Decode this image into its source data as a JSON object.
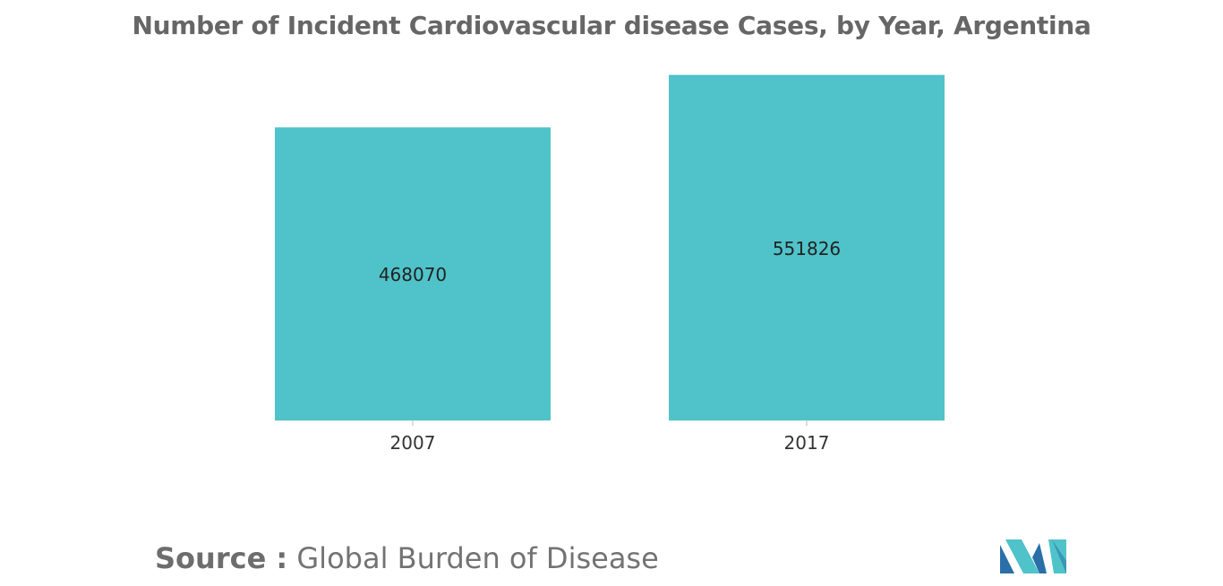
{
  "chart_data": {
    "type": "bar",
    "title": "Number of Incident Cardiovascular disease Cases, by Year, Argentina",
    "categories": [
      "2007",
      "2017"
    ],
    "values": [
      468070,
      551826
    ],
    "value_labels": [
      "468070",
      "551826"
    ],
    "xlabel": "",
    "ylabel": "",
    "ylim": [
      0,
      600000
    ],
    "grid": false,
    "legend": "none",
    "bar_color": "#4fc3c9"
  },
  "source": {
    "label": "Source :",
    "text": "Global Burden of Disease"
  },
  "logo": {
    "icon": "mordor-logo-icon",
    "color_dark": "#2a6fa8",
    "color_light": "#4fc3c9"
  }
}
